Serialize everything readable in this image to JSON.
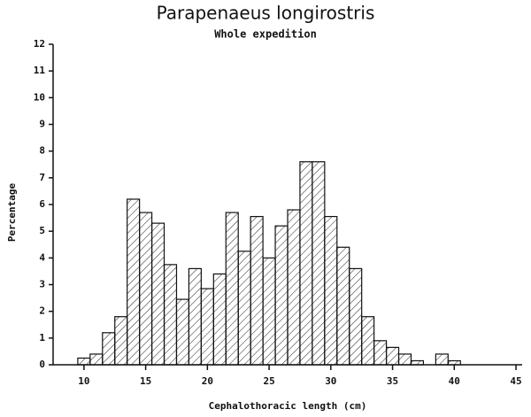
{
  "chart_data": {
    "type": "histogram",
    "title": "Parapenaeus longirostris",
    "subtitle": "Whole expedition",
    "x_label": "Cephalothoracic length (cm)",
    "y_label": "Percentage",
    "bins": [
      9.5,
      10.5,
      11.5,
      12.5,
      13.5,
      14.5,
      15.5,
      16.5,
      17.5,
      18.5,
      19.5,
      20.5,
      21.5,
      22.5,
      23.5,
      24.5,
      25.5,
      26.5,
      27.5,
      28.5,
      29.5,
      30.5,
      31.5,
      32.5,
      33.5,
      34.5,
      35.5,
      36.5,
      37.5,
      38.5,
      39.5,
      40.5
    ],
    "values": [
      0.25,
      0.4,
      1.2,
      1.8,
      6.2,
      5.7,
      5.3,
      3.75,
      2.45,
      3.6,
      2.85,
      3.4,
      5.7,
      4.25,
      5.55,
      4.0,
      5.2,
      5.8,
      7.6,
      7.6,
      5.55,
      4.4,
      3.6,
      1.8,
      0.9,
      0.65,
      0.4,
      0.15,
      0,
      0.4,
      0.15
    ],
    "color": "#111111",
    "hatch": true,
    "xlim": [
      7.5,
      45.5
    ],
    "xticks": [
      10,
      15,
      20,
      25,
      30,
      35,
      40,
      45
    ],
    "ylim": [
      0,
      12
    ],
    "yticks": [
      0,
      1,
      2,
      3,
      4,
      5,
      6,
      7,
      8,
      9,
      10,
      11,
      12
    ]
  }
}
